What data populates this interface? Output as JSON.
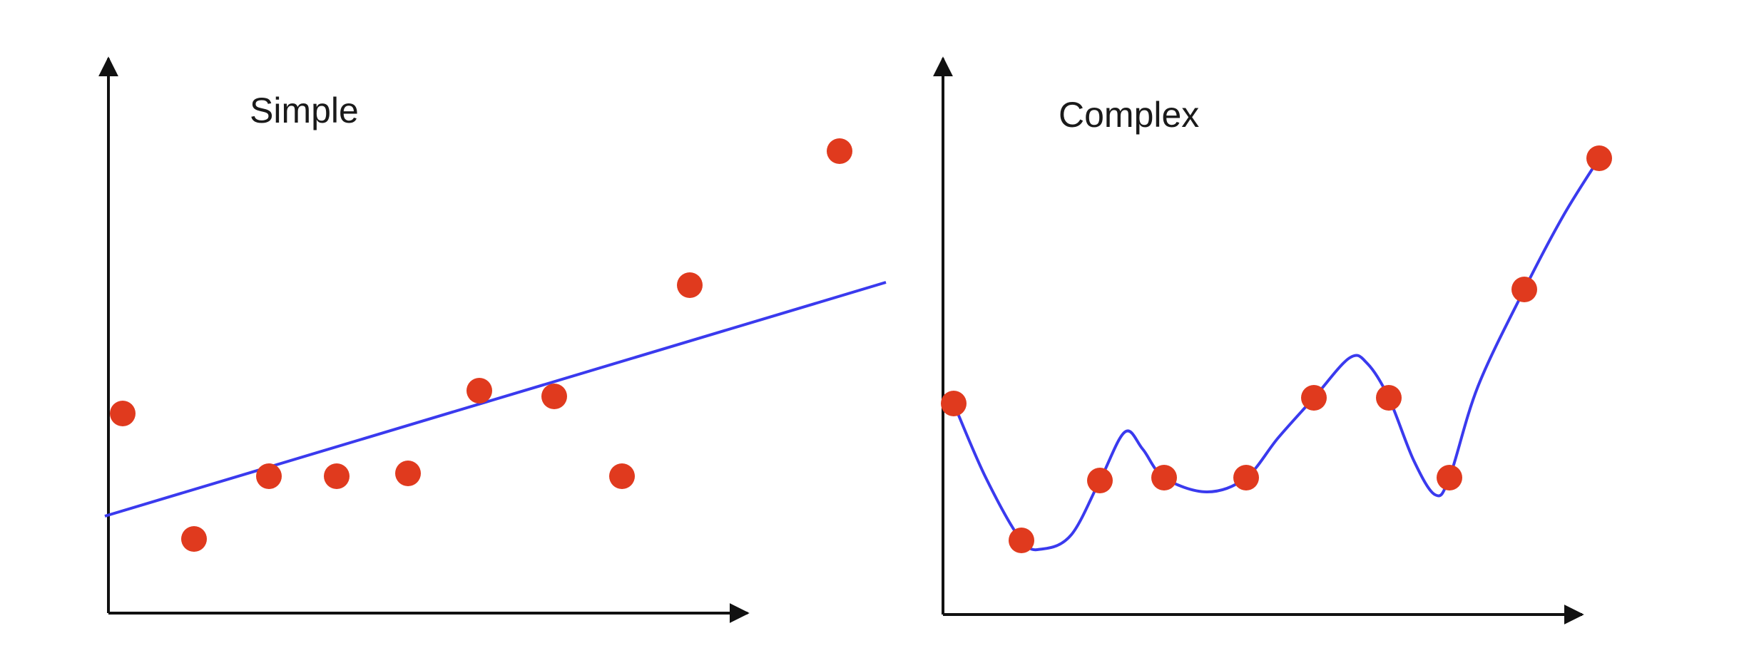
{
  "chart_data": [
    {
      "type": "scatter",
      "title": "Simple",
      "xlabel": "",
      "ylabel": "",
      "xlim": [
        0,
        100
      ],
      "ylim": [
        0,
        100
      ],
      "ticks": "none",
      "grid": false,
      "colors": {
        "points": "#e03a1e",
        "fit": "#3a3aee",
        "axes": "#111111"
      },
      "points": [
        {
          "x": 2,
          "y": 35
        },
        {
          "x": 12,
          "y": 13
        },
        {
          "x": 22.5,
          "y": 24
        },
        {
          "x": 32,
          "y": 24
        },
        {
          "x": 42,
          "y": 24.5
        },
        {
          "x": 52,
          "y": 39
        },
        {
          "x": 62.5,
          "y": 38
        },
        {
          "x": 72,
          "y": 24
        },
        {
          "x": 81.5,
          "y": 57.5
        },
        {
          "x": 102.5,
          "y": 81
        }
      ],
      "fit_line": [
        {
          "x": -0.5,
          "y": 17
        },
        {
          "x": 109,
          "y": 58
        }
      ]
    },
    {
      "type": "line",
      "title": "Complex",
      "xlabel": "",
      "ylabel": "",
      "xlim": [
        0,
        100
      ],
      "ylim": [
        0,
        100
      ],
      "ticks": "none",
      "grid": false,
      "colors": {
        "points": "#e03a1e",
        "fit": "#3a3aee",
        "axes": "#111111"
      },
      "points": [
        {
          "x": 1.5,
          "y": 37
        },
        {
          "x": 11,
          "y": 13
        },
        {
          "x": 22,
          "y": 23.5
        },
        {
          "x": 31,
          "y": 24
        },
        {
          "x": 42.5,
          "y": 24
        },
        {
          "x": 52,
          "y": 38
        },
        {
          "x": 62.5,
          "y": 38
        },
        {
          "x": 71,
          "y": 24
        },
        {
          "x": 81.5,
          "y": 57
        },
        {
          "x": 92,
          "y": 80
        }
      ],
      "curve": [
        {
          "x": 1.5,
          "y": 37
        },
        {
          "x": 6,
          "y": 24
        },
        {
          "x": 11,
          "y": 13
        },
        {
          "x": 14,
          "y": 11.5
        },
        {
          "x": 18,
          "y": 14
        },
        {
          "x": 22,
          "y": 23.5
        },
        {
          "x": 25.5,
          "y": 32
        },
        {
          "x": 28,
          "y": 29
        },
        {
          "x": 31,
          "y": 24
        },
        {
          "x": 37,
          "y": 21.5
        },
        {
          "x": 42.5,
          "y": 24
        },
        {
          "x": 47,
          "y": 31
        },
        {
          "x": 52,
          "y": 38
        },
        {
          "x": 57,
          "y": 45
        },
        {
          "x": 59.5,
          "y": 44
        },
        {
          "x": 62.5,
          "y": 38
        },
        {
          "x": 66,
          "y": 27
        },
        {
          "x": 69,
          "y": 21
        },
        {
          "x": 71,
          "y": 24
        },
        {
          "x": 75,
          "y": 40
        },
        {
          "x": 81.5,
          "y": 57
        },
        {
          "x": 87,
          "y": 70
        },
        {
          "x": 92,
          "y": 80
        }
      ]
    }
  ]
}
